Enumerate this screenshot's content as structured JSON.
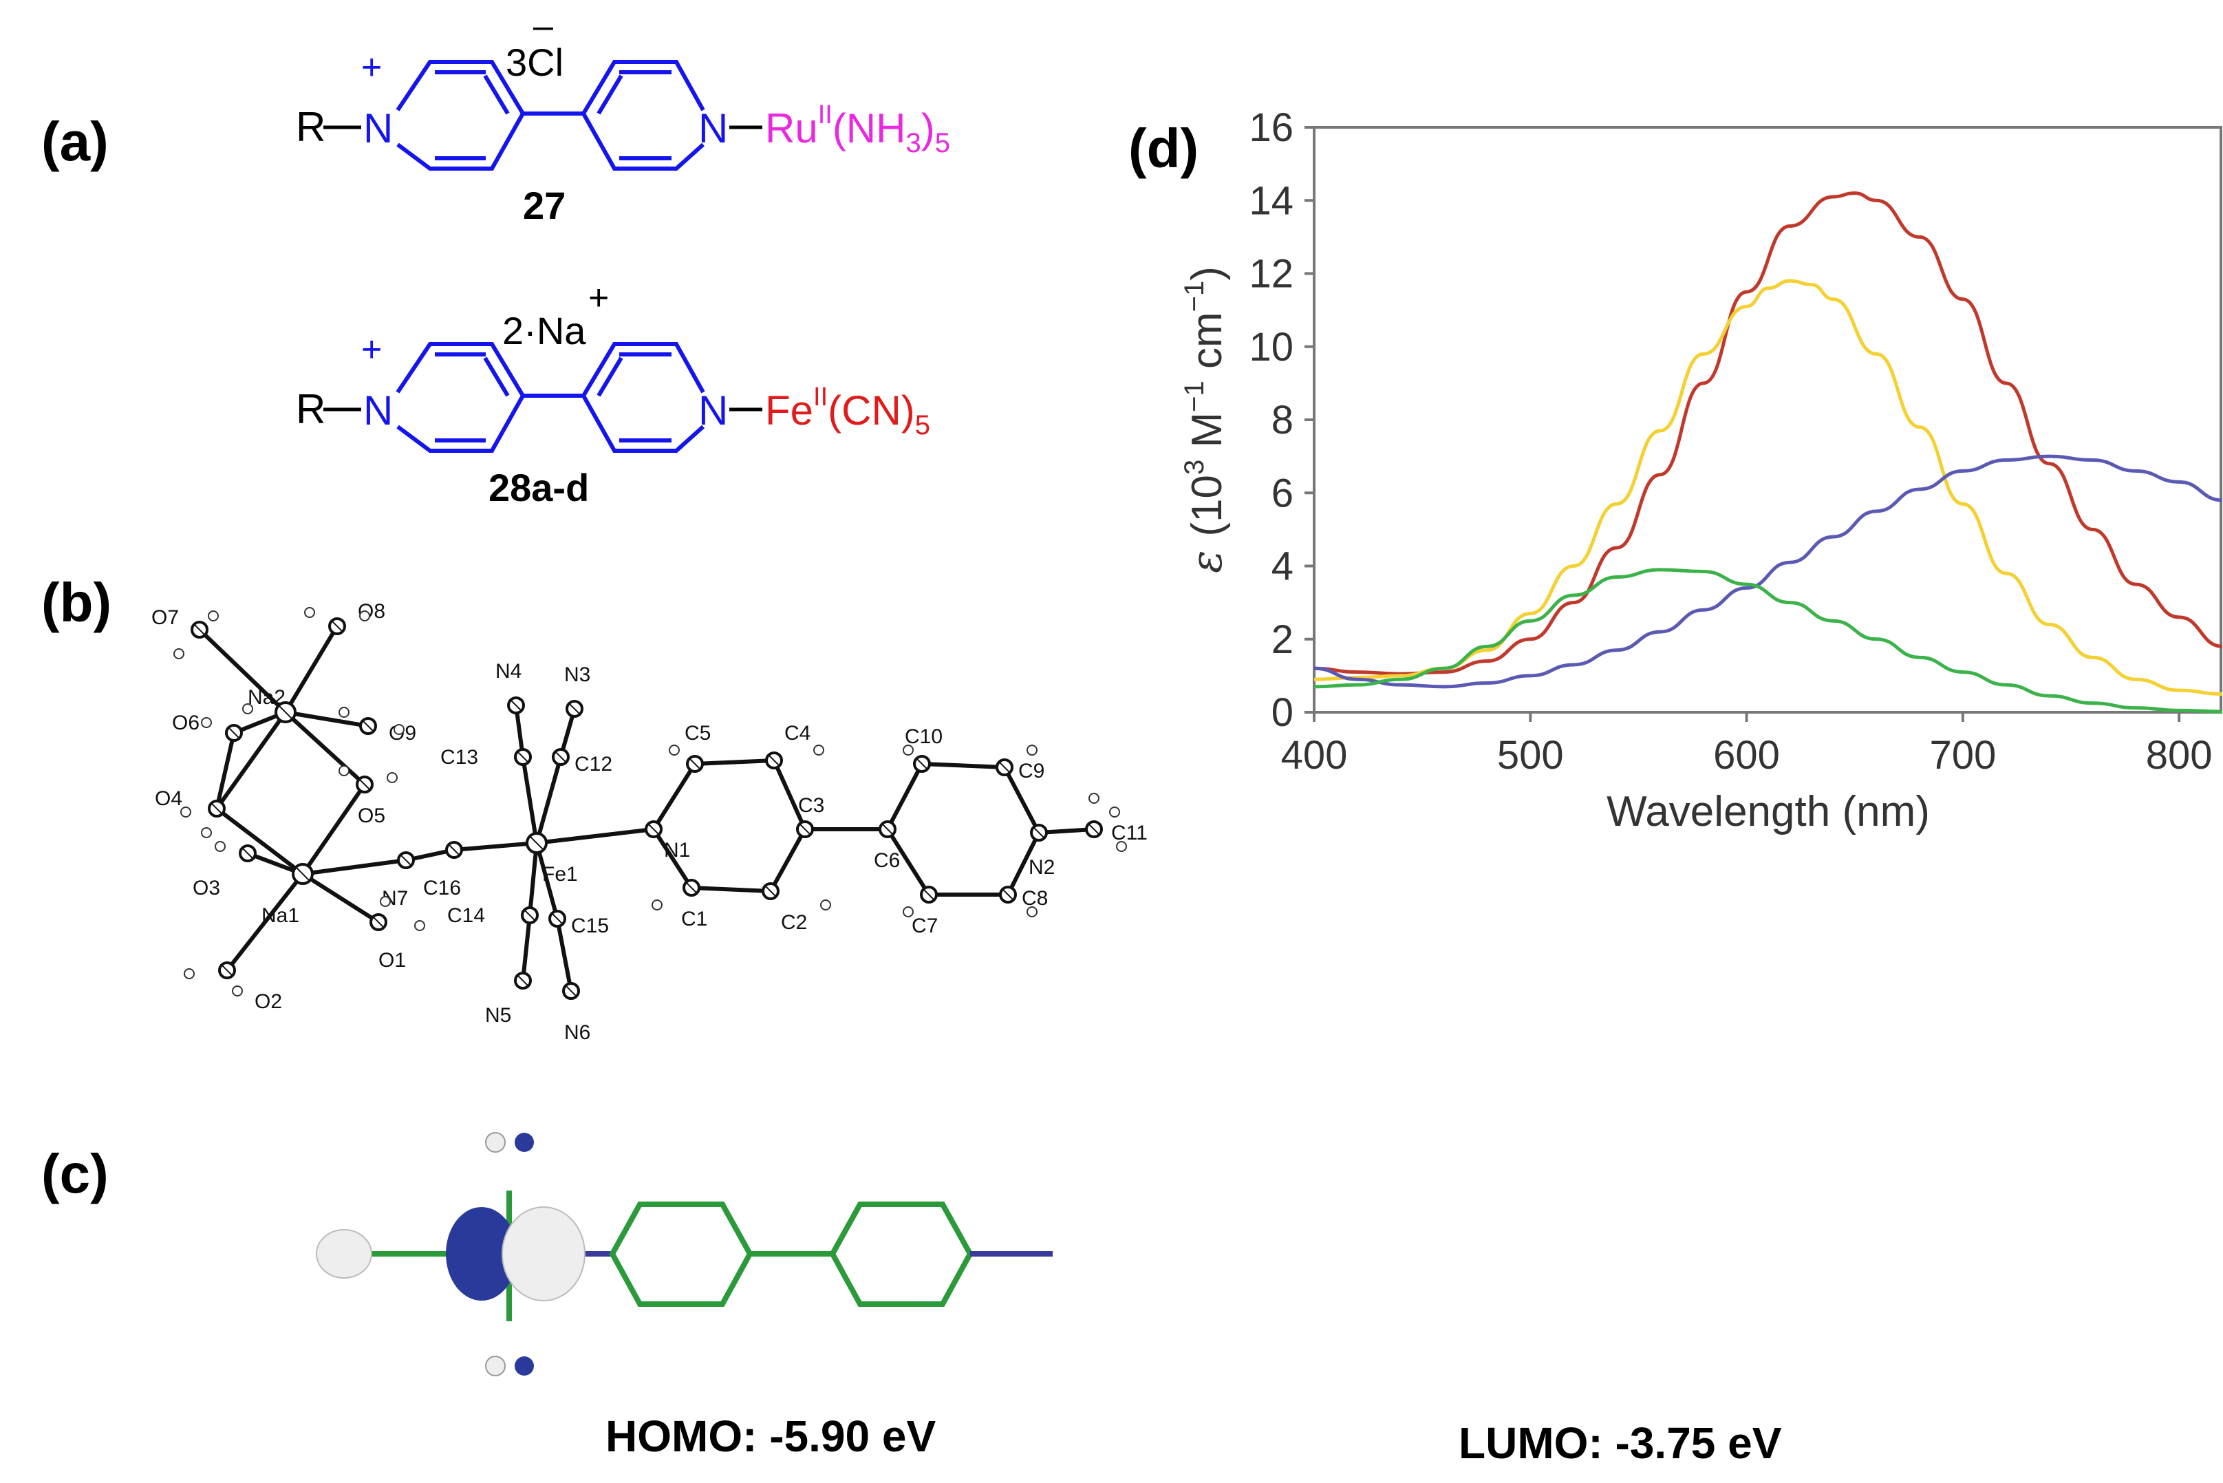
{
  "panels": {
    "a": "(a)",
    "b": "(b)",
    "c": "(c)",
    "d": "(d)"
  },
  "structures": {
    "compound1": {
      "r": "R",
      "nplus_charge": "+",
      "nplus": "N",
      "n_right": "N",
      "counterion": "3Cl",
      "counterion_charge": "–",
      "metal": "Ru",
      "metal_ox": "II",
      "ligand": "(NH",
      "ligand_sub": "3",
      "ligand_close": ")",
      "ligand_count": "5",
      "label": "27",
      "metal_color": "#e829e0"
    },
    "compound2": {
      "r": "R",
      "nplus_charge": "+",
      "nplus": "N",
      "n_right": "N",
      "counterion_count": "2",
      "counterion_dot": "·",
      "counterion": "Na",
      "counterion_charge": "+",
      "metal": "Fe",
      "metal_ox": "II",
      "ligand": "(CN)",
      "ligand_count": "5",
      "label": "28a-d",
      "metal_color": "#e01b1b"
    },
    "ring_color": "#1414ee"
  },
  "crystal": {
    "atoms": [
      {
        "id": "O7",
        "label": "O7"
      },
      {
        "id": "O8",
        "label": "O8"
      },
      {
        "id": "Na2",
        "label": "Na2"
      },
      {
        "id": "O6",
        "label": "O6"
      },
      {
        "id": "O9",
        "label": "O9"
      },
      {
        "id": "O4",
        "label": "O4"
      },
      {
        "id": "O5",
        "label": "O5"
      },
      {
        "id": "O3",
        "label": "O3"
      },
      {
        "id": "Na1",
        "label": "Na1"
      },
      {
        "id": "O1",
        "label": "O1"
      },
      {
        "id": "O2",
        "label": "O2"
      },
      {
        "id": "N7",
        "label": "N7"
      },
      {
        "id": "C16",
        "label": "C16"
      },
      {
        "id": "Fe1",
        "label": "Fe1"
      },
      {
        "id": "N4",
        "label": "N4"
      },
      {
        "id": "N3",
        "label": "N3"
      },
      {
        "id": "C13",
        "label": "C13"
      },
      {
        "id": "C12",
        "label": "C12"
      },
      {
        "id": "C14",
        "label": "C14"
      },
      {
        "id": "C15",
        "label": "C15"
      },
      {
        "id": "N5",
        "label": "N5"
      },
      {
        "id": "N6",
        "label": "N6"
      },
      {
        "id": "N1",
        "label": "N1"
      },
      {
        "id": "C5",
        "label": "C5"
      },
      {
        "id": "C4",
        "label": "C4"
      },
      {
        "id": "C3",
        "label": "C3"
      },
      {
        "id": "C1",
        "label": "C1"
      },
      {
        "id": "C2",
        "label": "C2"
      },
      {
        "id": "C6",
        "label": "C6"
      },
      {
        "id": "C10",
        "label": "C10"
      },
      {
        "id": "C9",
        "label": "C9"
      },
      {
        "id": "C7",
        "label": "C7"
      },
      {
        "id": "C8",
        "label": "C8"
      },
      {
        "id": "N2",
        "label": "N2"
      },
      {
        "id": "C11",
        "label": "C11"
      }
    ]
  },
  "orbitals": {
    "homo_caption": "HOMO: -5.90 eV",
    "lumo_caption": "LUMO: -3.75 eV",
    "lobe_positive": "#2a3a9a",
    "lobe_negative": "#eeeeee",
    "bond_color": "#2a9a3a"
  },
  "chart_data": {
    "type": "line",
    "xlabel": "Wavelength (nm)",
    "ylabel_symbol": "ε",
    "ylabel_paren_open": "(10",
    "ylabel_sup1": "3",
    "ylabel_mid": " M",
    "ylabel_sup2": "−1",
    "ylabel_end": " cm",
    "ylabel_sup3": "−1",
    "ylabel_close": ")",
    "xlim": [
      400,
      820
    ],
    "ylim": [
      0,
      16
    ],
    "x_ticks": [
      400,
      500,
      600,
      700,
      800
    ],
    "y_ticks": [
      0,
      2,
      4,
      6,
      8,
      10,
      12,
      14,
      16
    ],
    "grid": false,
    "legend": "none",
    "series": [
      {
        "color": "#c0392b",
        "x": [
          400,
          420,
          440,
          460,
          480,
          500,
          520,
          540,
          560,
          580,
          600,
          620,
          640,
          650,
          660,
          680,
          700,
          720,
          740,
          760,
          780,
          800,
          820
        ],
        "y": [
          1.2,
          1.1,
          1.05,
          1.1,
          1.4,
          2.0,
          3.0,
          4.5,
          6.5,
          9.0,
          11.5,
          13.3,
          14.1,
          14.2,
          14.0,
          13.0,
          11.3,
          9.0,
          6.8,
          5.0,
          3.5,
          2.6,
          1.8
        ]
      },
      {
        "color": "#f5d033",
        "x": [
          400,
          420,
          440,
          460,
          480,
          500,
          520,
          540,
          560,
          580,
          600,
          610,
          620,
          630,
          640,
          660,
          680,
          700,
          720,
          740,
          760,
          780,
          800,
          820
        ],
        "y": [
          0.9,
          0.95,
          1.0,
          1.2,
          1.7,
          2.7,
          4.0,
          5.7,
          7.7,
          9.8,
          11.1,
          11.6,
          11.8,
          11.7,
          11.3,
          9.8,
          7.8,
          5.7,
          3.8,
          2.4,
          1.5,
          0.9,
          0.6,
          0.5
        ]
      },
      {
        "color": "#5a5ab5",
        "x": [
          400,
          420,
          440,
          460,
          480,
          500,
          520,
          540,
          560,
          580,
          600,
          620,
          640,
          660,
          680,
          700,
          720,
          740,
          760,
          780,
          800,
          820
        ],
        "y": [
          1.2,
          0.9,
          0.75,
          0.7,
          0.8,
          1.0,
          1.3,
          1.7,
          2.2,
          2.8,
          3.4,
          4.1,
          4.8,
          5.5,
          6.1,
          6.6,
          6.9,
          7.0,
          6.9,
          6.6,
          6.3,
          5.8
        ]
      },
      {
        "color": "#3cb34a",
        "x": [
          400,
          420,
          440,
          460,
          480,
          500,
          520,
          540,
          560,
          580,
          600,
          620,
          640,
          660,
          680,
          700,
          720,
          740,
          760,
          780,
          800,
          820
        ],
        "y": [
          0.7,
          0.75,
          0.9,
          1.2,
          1.8,
          2.5,
          3.2,
          3.7,
          3.9,
          3.85,
          3.5,
          3.0,
          2.5,
          2.0,
          1.5,
          1.1,
          0.75,
          0.45,
          0.25,
          0.12,
          0.05,
          0.02
        ]
      }
    ]
  }
}
